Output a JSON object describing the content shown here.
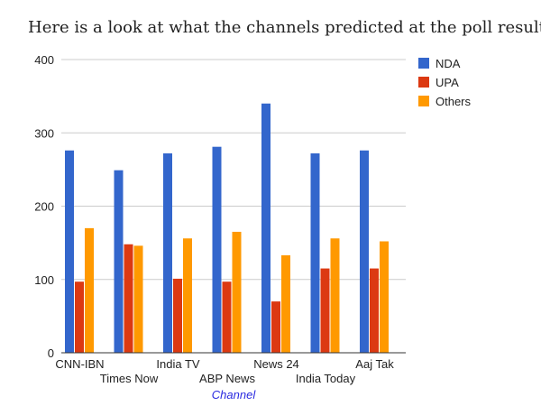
{
  "heading": "Here is a look at what the channels predicted at the poll results:",
  "chart_data": {
    "type": "bar",
    "title": "Here is a look at what the channels predicted at the poll results:",
    "xlabel": "Channel",
    "ylabel": "",
    "ylim": [
      0,
      400
    ],
    "yticks": [
      0,
      100,
      200,
      300,
      400
    ],
    "grid": true,
    "legend_position": "right",
    "categories": [
      "CNN-IBN",
      "Times Now",
      "India TV",
      "ABP News",
      "News 24",
      "India Today",
      "Aaj Tak"
    ],
    "series": [
      {
        "name": "NDA",
        "color": "#3366cc",
        "values": [
          276,
          249,
          272,
          281,
          340,
          272,
          276
        ]
      },
      {
        "name": "UPA",
        "color": "#dc3912",
        "values": [
          97,
          148,
          101,
          97,
          70,
          115,
          115
        ]
      },
      {
        "name": "Others",
        "color": "#ff9900",
        "values": [
          170,
          146,
          156,
          165,
          133,
          156,
          152
        ]
      }
    ]
  }
}
